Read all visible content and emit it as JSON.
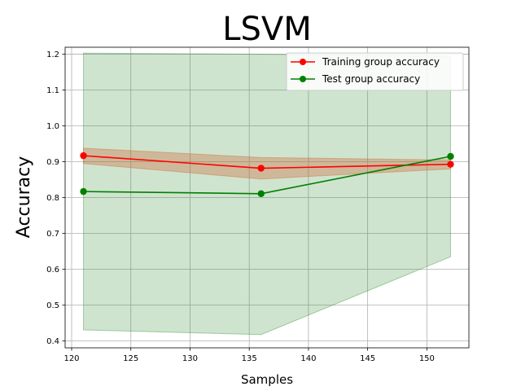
{
  "chart_data": {
    "type": "line",
    "title": "LSVM",
    "xlabel": "Samples",
    "ylabel": "Accuracy",
    "xlim": [
      119.45,
      153.55
    ],
    "ylim": [
      0.381,
      1.2195
    ],
    "xticks": [
      120,
      125,
      130,
      135,
      140,
      145,
      150
    ],
    "yticks": [
      0.4,
      0.5,
      0.6,
      0.7,
      0.8,
      0.9,
      1.0,
      1.1,
      1.2
    ],
    "xtick_labels": [
      "120",
      "125",
      "130",
      "135",
      "140",
      "145",
      "150"
    ],
    "ytick_labels": [
      "0.4",
      "0.5",
      "0.6",
      "0.7",
      "0.8",
      "0.9",
      "1.0",
      "1.1",
      "1.2"
    ],
    "grid": true,
    "legend_position": "top-right",
    "x": [
      121,
      136,
      152
    ],
    "series": [
      {
        "name": "Training group accuracy",
        "color": "#ff0000",
        "band_color": "#cc6633",
        "marker": "circle",
        "values": [
          0.917,
          0.882,
          0.893
        ],
        "band_upper": [
          0.938,
          0.912,
          0.905
        ],
        "band_lower": [
          0.895,
          0.852,
          0.88
        ]
      },
      {
        "name": "Test group accuracy",
        "color": "#008000",
        "band_color": "#2e8b2e",
        "marker": "circle",
        "values": [
          0.817,
          0.811,
          0.915
        ],
        "band_upper": [
          1.203,
          1.2,
          1.195
        ],
        "band_lower": [
          0.431,
          0.418,
          0.635
        ]
      }
    ]
  }
}
